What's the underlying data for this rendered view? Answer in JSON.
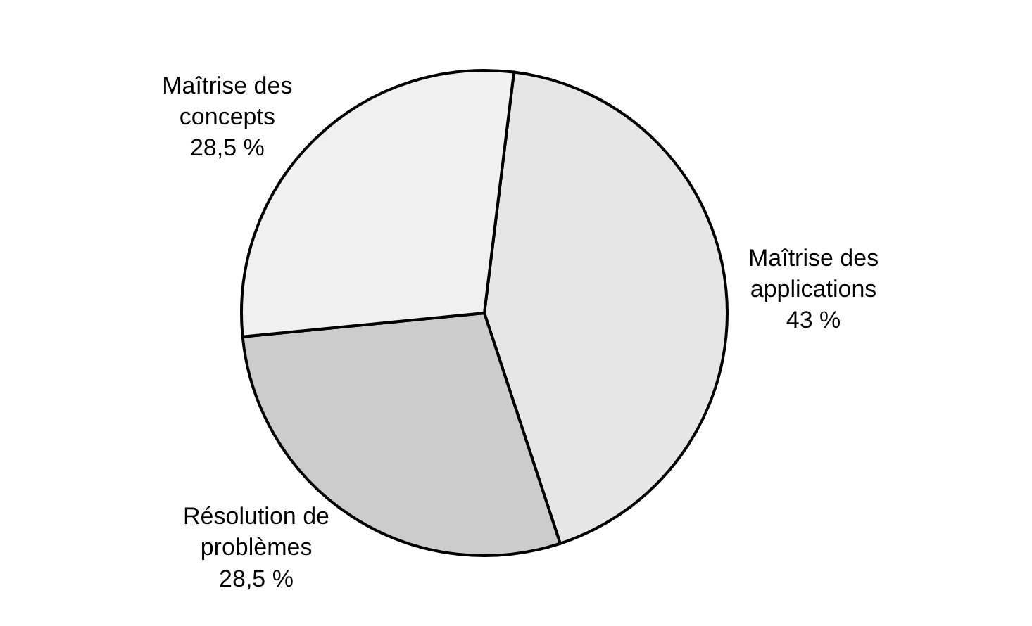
{
  "chart_data": {
    "type": "pie",
    "categories": [
      "Maîtrise des applications",
      "Résolution de problèmes",
      "Maîtrise des concepts"
    ],
    "values": [
      43,
      28.5,
      28.5
    ],
    "value_labels": [
      "43 %",
      "28,5 %",
      "28,5 %"
    ],
    "colors": [
      "#e6e6e6",
      "#cccccc",
      "#f0f0f0"
    ],
    "legend": false
  }
}
